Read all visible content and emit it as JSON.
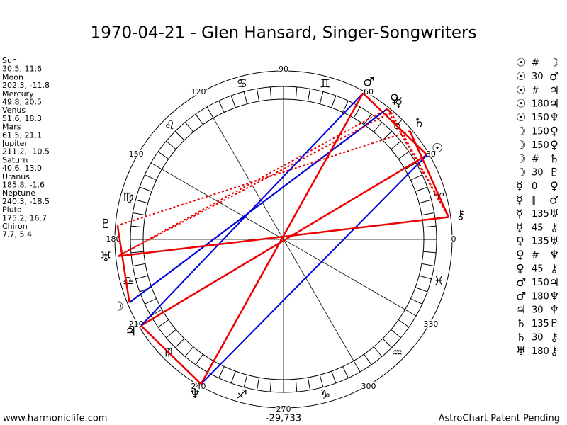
{
  "header": {
    "title": "1970-04-21 - Glen Hansard, Singer-Songwriters"
  },
  "planets": [
    {
      "name": "Sun",
      "glyph": "☉",
      "coords": "30.5, 11.6",
      "lon": 30.5
    },
    {
      "name": "Moon",
      "glyph": "☽",
      "coords": "202.3, -11.8",
      "lon": 202.3
    },
    {
      "name": "Mercury",
      "glyph": "☿",
      "coords": "49.8, 20.5",
      "lon": 49.8
    },
    {
      "name": "Venus",
      "glyph": "♀",
      "coords": "51.6, 18.3",
      "lon": 51.6
    },
    {
      "name": "Mars",
      "glyph": "♂",
      "coords": "61.5, 21.1",
      "lon": 61.5
    },
    {
      "name": "Jupiter",
      "glyph": "♃",
      "coords": "211.2, -10.5",
      "lon": 211.2
    },
    {
      "name": "Saturn",
      "glyph": "♄",
      "coords": "40.6, 13.0",
      "lon": 40.6
    },
    {
      "name": "Uranus",
      "glyph": "♅",
      "coords": "185.8, -1.6",
      "lon": 185.8
    },
    {
      "name": "Neptune",
      "glyph": "♆",
      "coords": "240.3, -18.5",
      "lon": 240.3
    },
    {
      "name": "Pluto",
      "glyph": "♇",
      "coords": "175.2, 16.7",
      "lon": 175.2
    },
    {
      "name": "Chiron",
      "glyph": "⚷",
      "coords": "7.7, 5.4",
      "lon": 7.7
    }
  ],
  "zodiac": [
    "♈",
    "♉",
    "♊",
    "♋",
    "♌",
    "♍",
    "♎",
    "♏",
    "♐",
    "♑",
    "♒",
    "♓"
  ],
  "degrees": [
    0,
    30,
    60,
    90,
    120,
    150,
    180,
    210,
    240,
    270,
    300,
    330
  ],
  "aspects": [
    {
      "a": "☉",
      "aspect": "#",
      "b": "☽"
    },
    {
      "a": "☉",
      "aspect": "30",
      "b": "♂"
    },
    {
      "a": "☉",
      "aspect": "#",
      "b": "♃"
    },
    {
      "a": "☉",
      "aspect": "180",
      "b": "♃"
    },
    {
      "a": "☉",
      "aspect": "150",
      "b": "♆"
    },
    {
      "a": "☽",
      "aspect": "150",
      "b": "♀"
    },
    {
      "a": "☽",
      "aspect": "150",
      "b": "♀"
    },
    {
      "a": "☽",
      "aspect": "#",
      "b": "♄"
    },
    {
      "a": "☽",
      "aspect": "30",
      "b": "♇"
    },
    {
      "a": "☿",
      "aspect": "0",
      "b": "♀"
    },
    {
      "a": "☿",
      "aspect": "∥",
      "b": "♂"
    },
    {
      "a": "☿",
      "aspect": "135",
      "b": "♅"
    },
    {
      "a": "☿",
      "aspect": "45",
      "b": "⚷"
    },
    {
      "a": "♀",
      "aspect": "135",
      "b": "♅"
    },
    {
      "a": "♀",
      "aspect": "#",
      "b": "♆"
    },
    {
      "a": "♀",
      "aspect": "45",
      "b": "⚷"
    },
    {
      "a": "♂",
      "aspect": "150",
      "b": "♃"
    },
    {
      "a": "♂",
      "aspect": "180",
      "b": "♆"
    },
    {
      "a": "♃",
      "aspect": "30",
      "b": "♆"
    },
    {
      "a": "♄",
      "aspect": "135",
      "b": "♇"
    },
    {
      "a": "♄",
      "aspect": "30",
      "b": "⚷"
    },
    {
      "a": "♅",
      "aspect": "180",
      "b": "⚷"
    }
  ],
  "footer": {
    "site": "www.harmoniclife.com",
    "score": "-29,733",
    "note": "AstroChart Patent Pending"
  }
}
